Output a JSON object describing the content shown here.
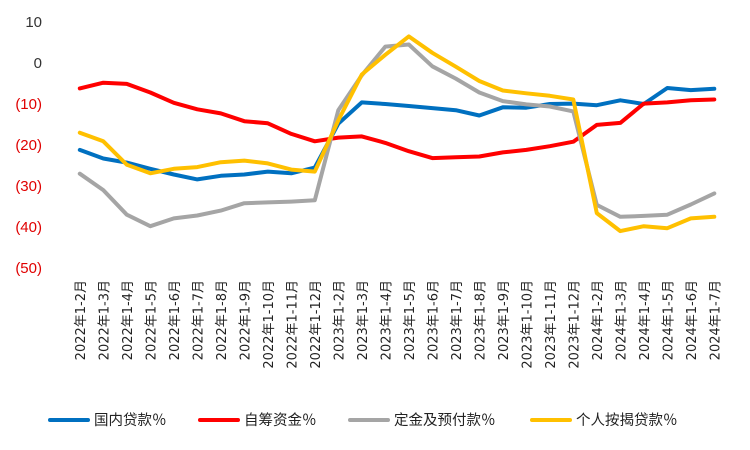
{
  "chart_data": {
    "type": "line",
    "title": "",
    "xlabel": "",
    "ylabel": "",
    "ylim": [
      -50,
      10
    ],
    "yticks": [
      10,
      0,
      -10,
      -20,
      -30,
      -40,
      -50
    ],
    "ytick_labels": [
      "10",
      "0",
      "(10)",
      "(20)",
      "(30)",
      "(40)",
      "(50)"
    ],
    "ytick_colors": {
      "positive": "#333333",
      "negative": "#e00000"
    },
    "grid": false,
    "legend_position": "bottom",
    "categories": [
      "2022年1-2月",
      "2022年1-3月",
      "2022年1-4月",
      "2022年1-5月",
      "2022年1-6月",
      "2022年1-7月",
      "2022年1-8月",
      "2022年1-9月",
      "2022年1-10月",
      "2022年1-11月",
      "2022年1-12月",
      "2023年1-2月",
      "2023年1-3月",
      "2023年1-4月",
      "2023年1-5月",
      "2023年1-6月",
      "2023年1-7月",
      "2023年1-8月",
      "2023年1-9月",
      "2023年1-10月",
      "2023年1-11月",
      "2023年1-12月",
      "2024年1-2月",
      "2024年1-3月",
      "2024年1-4月",
      "2024年1-5月",
      "2024年1-6月",
      "2024年1-7月"
    ],
    "series": [
      {
        "name": "国内贷款％",
        "color": "#0070c0",
        "values": [
          -21.2,
          -23.3,
          -24.3,
          -25.8,
          -27.2,
          -28.4,
          -27.5,
          -27.2,
          -26.5,
          -26.9,
          -25.5,
          -14.8,
          -9.6,
          -10.0,
          -10.5,
          -11.0,
          -11.5,
          -12.8,
          -10.8,
          -10.9,
          -10.0,
          -9.9,
          -10.3,
          -9.1,
          -10.0,
          -6.1,
          -6.6,
          -6.3
        ]
      },
      {
        "name": "自筹资金％",
        "color": "#ff0000",
        "values": [
          -6.2,
          -4.8,
          -5.1,
          -7.2,
          -9.7,
          -11.3,
          -12.3,
          -14.2,
          -14.7,
          -17.3,
          -19.1,
          -18.2,
          -17.9,
          -19.5,
          -21.5,
          -23.2,
          -23.0,
          -22.8,
          -21.8,
          -21.2,
          -20.3,
          -19.2,
          -15.1,
          -14.6,
          -9.9,
          -9.6,
          -9.1,
          -8.9
        ]
      },
      {
        "name": "定金及预付款％",
        "color": "#a5a5a5",
        "values": [
          -27.0,
          -31.0,
          -37.0,
          -39.8,
          -37.9,
          -37.2,
          -36.0,
          -34.2,
          -34.0,
          -33.8,
          -33.5,
          -11.5,
          -3.0,
          4.0,
          4.5,
          -0.8,
          -3.8,
          -7.2,
          -9.3,
          -10.1,
          -10.6,
          -11.8,
          -34.6,
          -37.5,
          -37.3,
          -37.0,
          -34.5,
          -31.8
        ]
      },
      {
        "name": "个人按揭贷款％",
        "color": "#ffc000",
        "values": [
          -17.0,
          -19.1,
          -24.8,
          -26.9,
          -25.8,
          -25.4,
          -24.2,
          -23.8,
          -24.5,
          -26.0,
          -26.5,
          -14.0,
          -2.8,
          2.0,
          6.5,
          2.5,
          -0.9,
          -4.4,
          -6.7,
          -7.4,
          -8.0,
          -8.9,
          -36.6,
          -41.0,
          -39.8,
          -40.3,
          -37.9,
          -37.5
        ]
      }
    ]
  }
}
